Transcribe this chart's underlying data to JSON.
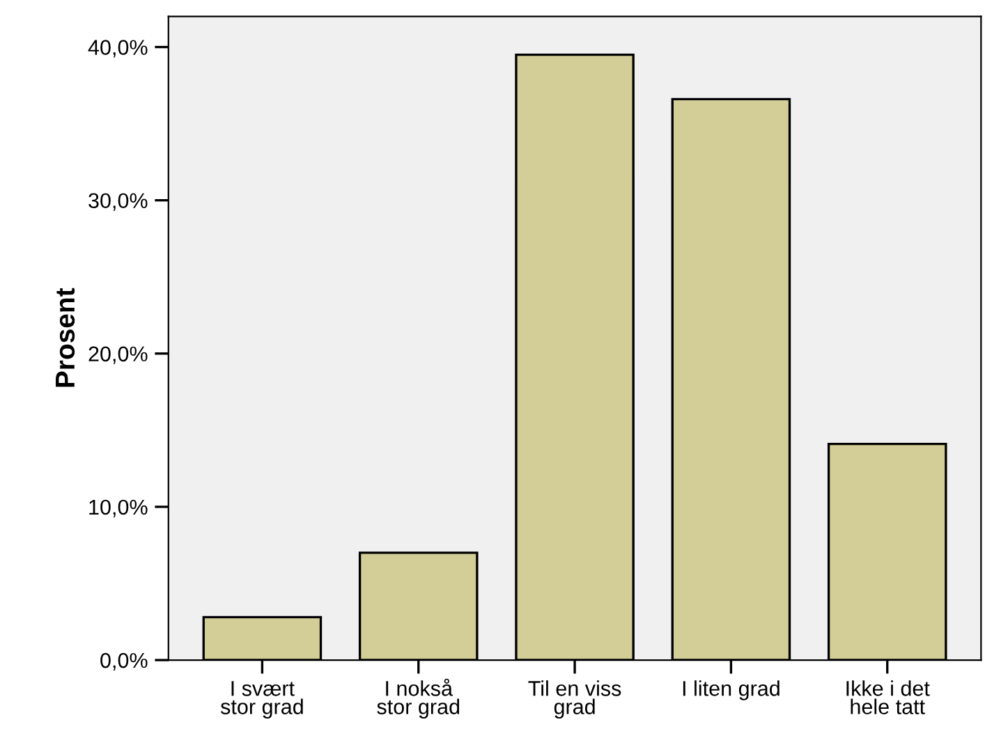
{
  "chart_data": {
    "type": "bar",
    "ylabel": "Prosent",
    "categories": [
      "I svært\nstor grad",
      "I nokså\nstor grad",
      "Til en viss\ngrad",
      "I liten grad",
      "Ikke i det\nhele tatt"
    ],
    "values": [
      2.8,
      7.0,
      39.5,
      36.6,
      14.1
    ],
    "color": "#d3ce97",
    "ylim": [
      0,
      42
    ],
    "yticks": [
      {
        "value": 0,
        "label": "0,0%"
      },
      {
        "value": 10,
        "label": "10,0%"
      },
      {
        "value": 20,
        "label": "20,0%"
      },
      {
        "value": 30,
        "label": "30,0%"
      },
      {
        "value": 40,
        "label": "40,0%"
      }
    ],
    "grid": false
  }
}
